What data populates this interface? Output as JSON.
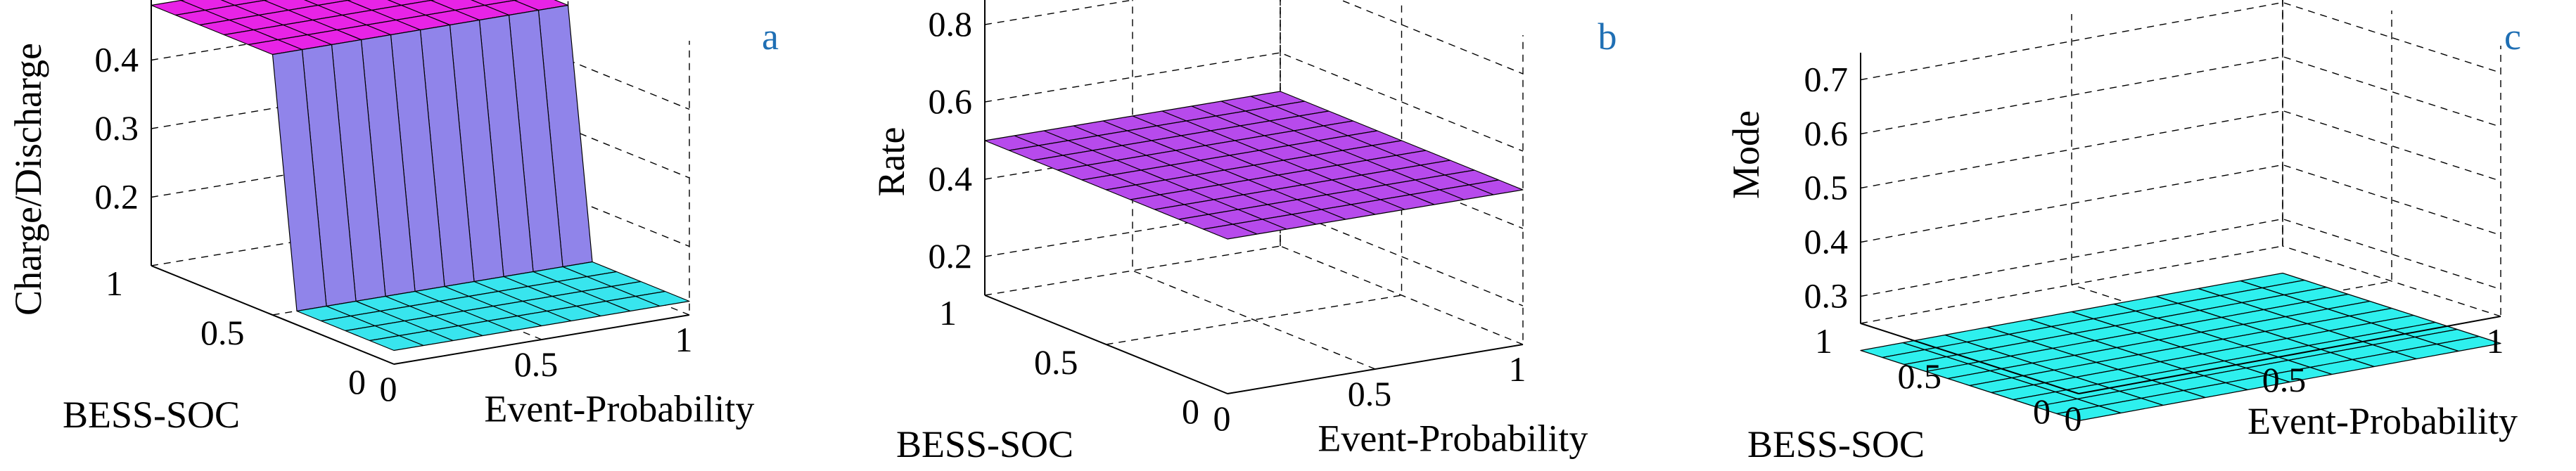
{
  "colors": {
    "cyan": "#2ef0ee",
    "magenta": "#f218e6",
    "blue": "#7b7bf2",
    "purple": "#b86cf2",
    "panel_label": "#1f6fb4"
  },
  "chart_data": [
    {
      "type": "surface",
      "panel_label": "a",
      "xlabel": "Event-Probability",
      "ylabel": "BESS-SOC",
      "zlabel": "Charge/Discharge",
      "x_ticks": [
        "0",
        "0.5",
        "1"
      ],
      "y_ticks": [
        "0",
        "0.5",
        "1"
      ],
      "z_ticks": [
        "0.2",
        "0.3",
        "0.4"
      ],
      "xlim": [
        0,
        1
      ],
      "ylim": [
        0,
        1
      ],
      "zlim": [
        0.1,
        0.5
      ],
      "grid": true,
      "x": [
        0,
        0.1,
        0.2,
        0.3,
        0.4,
        0.5,
        0.6,
        0.7,
        0.8,
        0.9,
        1.0
      ],
      "y": [
        0,
        0.1,
        0.2,
        0.3,
        0.4,
        0.5,
        0.6,
        0.7,
        0.8,
        0.9,
        1.0
      ],
      "z": [
        [
          0.12,
          0.12,
          0.12,
          0.12,
          0.12,
          0.12,
          0.12,
          0.12,
          0.12,
          0.12,
          0.12
        ],
        [
          0.12,
          0.12,
          0.12,
          0.12,
          0.12,
          0.12,
          0.12,
          0.12,
          0.12,
          0.12,
          0.12
        ],
        [
          0.12,
          0.12,
          0.12,
          0.12,
          0.12,
          0.12,
          0.12,
          0.12,
          0.12,
          0.12,
          0.12
        ],
        [
          0.12,
          0.12,
          0.12,
          0.12,
          0.12,
          0.12,
          0.12,
          0.12,
          0.12,
          0.12,
          0.12
        ],
        [
          0.12,
          0.12,
          0.12,
          0.12,
          0.12,
          0.12,
          0.12,
          0.12,
          0.12,
          0.12,
          0.12
        ],
        [
          0.48,
          0.48,
          0.48,
          0.48,
          0.48,
          0.48,
          0.48,
          0.48,
          0.48,
          0.48,
          0.48
        ],
        [
          0.48,
          0.48,
          0.48,
          0.48,
          0.48,
          0.48,
          0.48,
          0.48,
          0.48,
          0.48,
          0.48
        ],
        [
          0.48,
          0.48,
          0.48,
          0.48,
          0.48,
          0.48,
          0.48,
          0.48,
          0.48,
          0.48,
          0.48
        ],
        [
          0.48,
          0.48,
          0.48,
          0.48,
          0.48,
          0.48,
          0.48,
          0.48,
          0.48,
          0.48,
          0.48
        ],
        [
          0.48,
          0.48,
          0.48,
          0.48,
          0.48,
          0.48,
          0.48,
          0.48,
          0.48,
          0.48,
          0.48
        ],
        [
          0.48,
          0.48,
          0.48,
          0.48,
          0.48,
          0.48,
          0.48,
          0.48,
          0.48,
          0.48,
          0.48
        ]
      ],
      "color_low": "#2ef0ee",
      "color_high": "#f218e6"
    },
    {
      "type": "surface",
      "panel_label": "b",
      "xlabel": "Event-Probability",
      "ylabel": "BESS-SOC",
      "zlabel": "Rate",
      "x_ticks": [
        "0",
        "0.5",
        "1"
      ],
      "y_ticks": [
        "0",
        "0.5",
        "1"
      ],
      "z_ticks": [
        "0.2",
        "0.4",
        "0.6",
        "0.8"
      ],
      "xlim": [
        0,
        1
      ],
      "ylim": [
        0,
        1
      ],
      "zlim": [
        0.1,
        0.9
      ],
      "grid": true,
      "x": [
        0,
        0.1,
        0.2,
        0.3,
        0.4,
        0.5,
        0.6,
        0.7,
        0.8,
        0.9,
        1.0
      ],
      "y": [
        0,
        0.1,
        0.2,
        0.3,
        0.4,
        0.5,
        0.6,
        0.7,
        0.8,
        0.9,
        1.0
      ],
      "z": [
        [
          0.5,
          0.5,
          0.5,
          0.5,
          0.5,
          0.5,
          0.5,
          0.5,
          0.5,
          0.5,
          0.5
        ],
        [
          0.5,
          0.5,
          0.5,
          0.5,
          0.5,
          0.5,
          0.5,
          0.5,
          0.5,
          0.5,
          0.5
        ],
        [
          0.5,
          0.5,
          0.5,
          0.5,
          0.5,
          0.5,
          0.5,
          0.5,
          0.5,
          0.5,
          0.5
        ],
        [
          0.5,
          0.5,
          0.5,
          0.5,
          0.5,
          0.5,
          0.5,
          0.5,
          0.5,
          0.5,
          0.5
        ],
        [
          0.5,
          0.5,
          0.5,
          0.5,
          0.5,
          0.5,
          0.5,
          0.5,
          0.5,
          0.5,
          0.5
        ],
        [
          0.5,
          0.5,
          0.5,
          0.5,
          0.5,
          0.5,
          0.5,
          0.5,
          0.5,
          0.5,
          0.5
        ],
        [
          0.5,
          0.5,
          0.5,
          0.5,
          0.5,
          0.5,
          0.5,
          0.5,
          0.5,
          0.5,
          0.5
        ],
        [
          0.5,
          0.5,
          0.5,
          0.5,
          0.5,
          0.5,
          0.5,
          0.5,
          0.5,
          0.5,
          0.5
        ],
        [
          0.5,
          0.5,
          0.5,
          0.5,
          0.5,
          0.5,
          0.5,
          0.5,
          0.5,
          0.5,
          0.5
        ],
        [
          0.5,
          0.5,
          0.5,
          0.5,
          0.5,
          0.5,
          0.5,
          0.5,
          0.5,
          0.5,
          0.5
        ],
        [
          0.5,
          0.5,
          0.5,
          0.5,
          0.5,
          0.5,
          0.5,
          0.5,
          0.5,
          0.5,
          0.5
        ]
      ],
      "color_low": "#7b7bf2",
      "color_high": "#f218e6"
    },
    {
      "type": "surface",
      "panel_label": "c",
      "xlabel": "Event-Probability",
      "ylabel": "BESS-SOC",
      "zlabel": "Mode",
      "x_ticks": [
        "0",
        "0.5",
        "1"
      ],
      "y_ticks": [
        "0",
        "0.5",
        "1"
      ],
      "z_ticks": [
        "0.3",
        "0.4",
        "0.5",
        "0.6",
        "0.7"
      ],
      "xlim": [
        0,
        1
      ],
      "ylim": [
        0,
        1
      ],
      "zlim": [
        0.25,
        0.75
      ],
      "grid": true,
      "x": [
        0,
        0.1,
        0.2,
        0.3,
        0.4,
        0.5,
        0.6,
        0.7,
        0.8,
        0.9,
        1.0
      ],
      "y": [
        0,
        0.1,
        0.2,
        0.3,
        0.4,
        0.5,
        0.6,
        0.7,
        0.8,
        0.9,
        1.0
      ],
      "z": [
        [
          0.2,
          0.2,
          0.2,
          0.2,
          0.2,
          0.2,
          0.2,
          0.2,
          0.2,
          0.2,
          0.2
        ],
        [
          0.2,
          0.2,
          0.2,
          0.2,
          0.2,
          0.2,
          0.2,
          0.2,
          0.2,
          0.2,
          0.2
        ],
        [
          0.2,
          0.2,
          0.2,
          0.2,
          0.2,
          0.2,
          0.2,
          0.2,
          0.2,
          0.2,
          0.2
        ],
        [
          0.2,
          0.2,
          0.2,
          0.2,
          0.2,
          0.2,
          0.2,
          0.2,
          0.2,
          0.2,
          0.2
        ],
        [
          0.2,
          0.2,
          0.2,
          0.2,
          0.2,
          0.2,
          0.2,
          0.2,
          0.2,
          0.2,
          0.2
        ],
        [
          0.2,
          0.2,
          0.2,
          0.2,
          0.2,
          0.2,
          0.2,
          0.2,
          0.2,
          0.2,
          0.2
        ],
        [
          0.2,
          0.2,
          0.2,
          0.2,
          0.2,
          0.2,
          0.2,
          0.2,
          0.2,
          0.2,
          0.2
        ],
        [
          0.2,
          0.2,
          0.2,
          0.2,
          0.2,
          0.2,
          0.2,
          0.2,
          0.2,
          0.2,
          0.2
        ],
        [
          0.2,
          0.2,
          0.2,
          0.2,
          0.2,
          0.2,
          0.2,
          0.2,
          0.2,
          0.2,
          0.2
        ],
        [
          0.2,
          0.2,
          0.2,
          0.2,
          0.2,
          0.2,
          0.2,
          0.2,
          0.2,
          0.2,
          0.2
        ],
        [
          0.2,
          0.2,
          0.2,
          0.2,
          0.2,
          0.2,
          0.2,
          0.2,
          0.2,
          0.2,
          0.2
        ]
      ],
      "color_low": "#2ef0ee",
      "color_high": "#f218e6"
    }
  ]
}
